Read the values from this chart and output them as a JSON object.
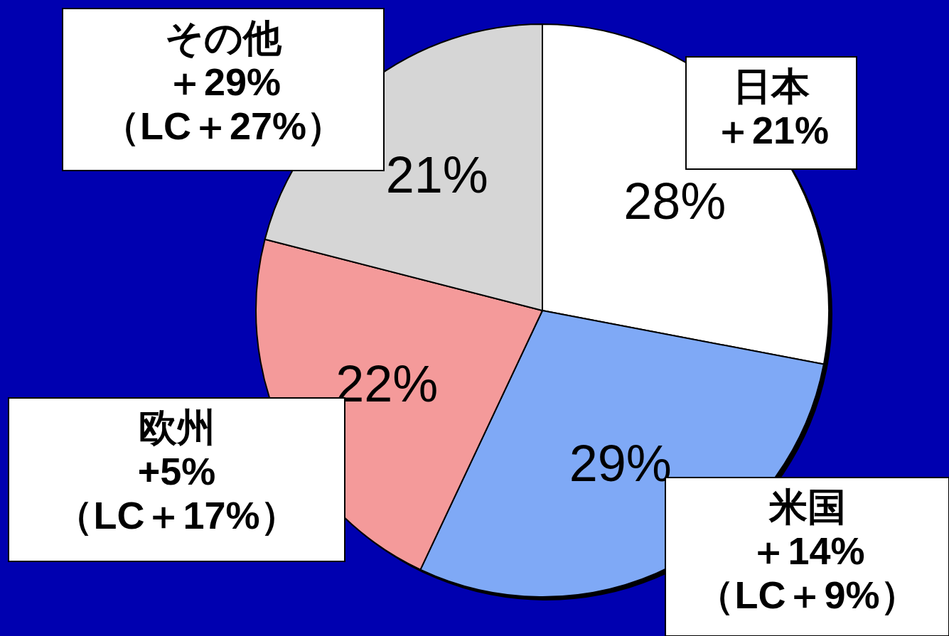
{
  "chart_data": {
    "type": "pie",
    "categories": [
      "日本",
      "米国",
      "欧州",
      "その他"
    ],
    "values": [
      28,
      29,
      22,
      21
    ],
    "colors": [
      "#ffffff",
      "#7fa9f6",
      "#f49a9a",
      "#d6d6d6"
    ],
    "value_labels": [
      "28%",
      "29%",
      "22%",
      "21%"
    ],
    "annotations": [
      "＋21%",
      "＋14%",
      "（LC＋9%）",
      "+5%",
      "（LC＋17%）",
      "＋29%",
      "（LC＋27%）"
    ]
  }
}
